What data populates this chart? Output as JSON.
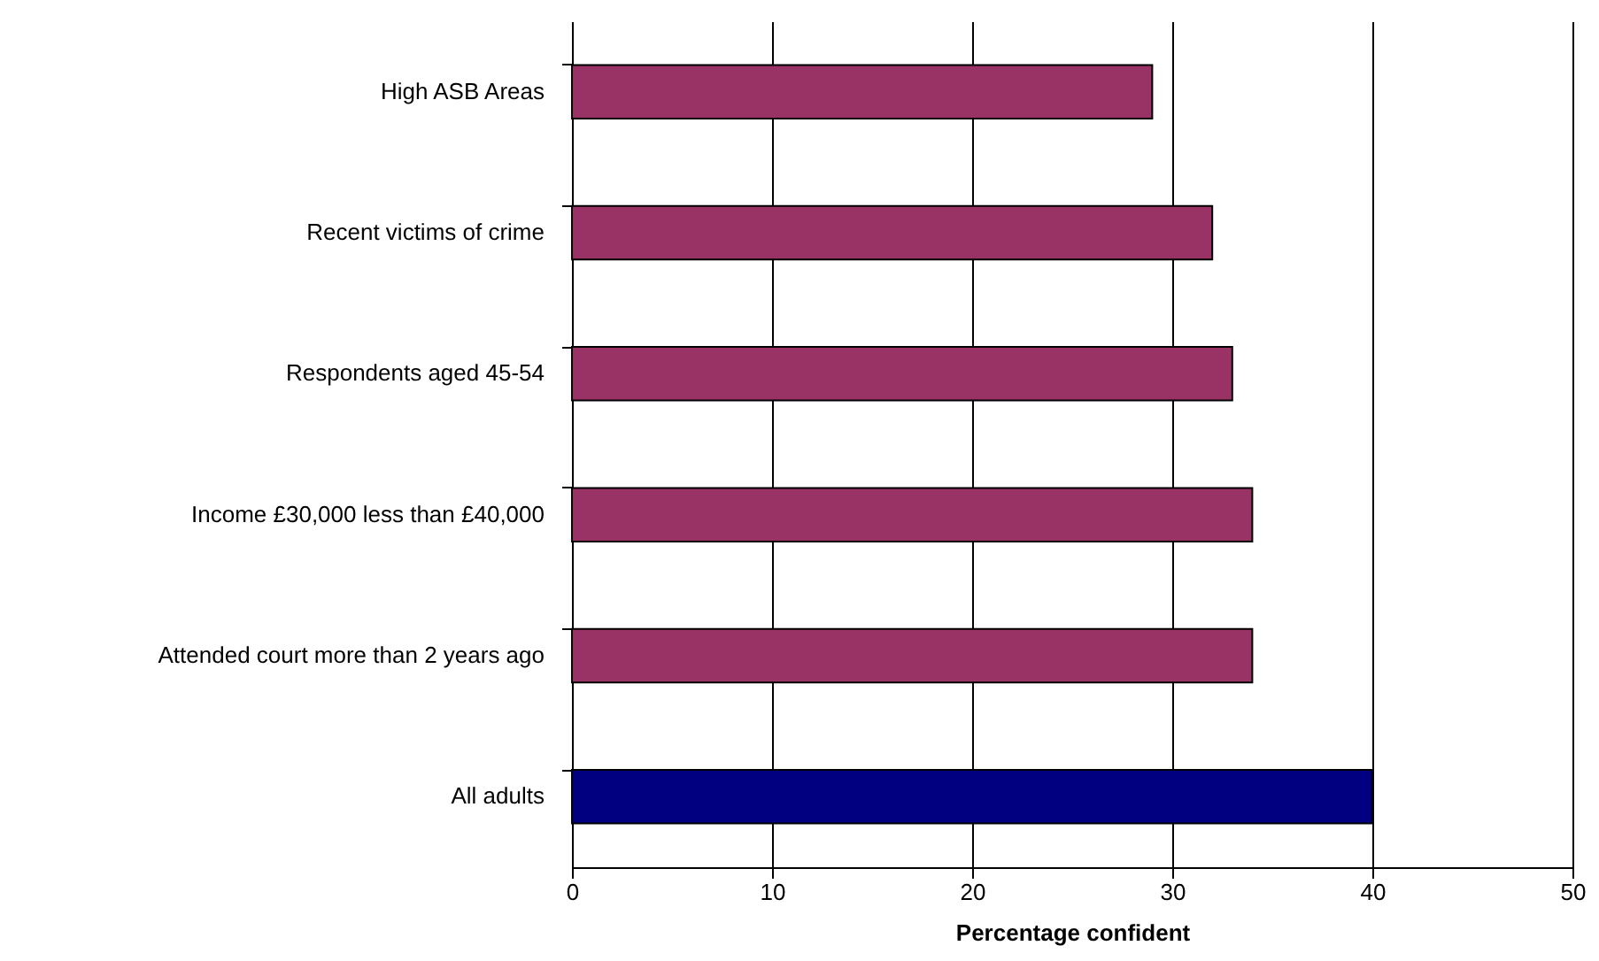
{
  "chart_data": {
    "type": "bar",
    "orientation": "horizontal",
    "xlabel": "Percentage confident",
    "categories": [
      "High ASB Areas",
      "Recent victims of crime",
      "Respondents aged 45-54",
      "Income £30,000 less than £40,000",
      "Attended court more than 2 years ago",
      "All adults"
    ],
    "values": [
      29,
      32,
      33,
      34,
      34,
      40
    ],
    "colors": [
      "#993366",
      "#993366",
      "#993366",
      "#993366",
      "#993366",
      "#000080"
    ],
    "xlim": [
      0,
      50
    ],
    "xticks": [
      0,
      10,
      20,
      30,
      40,
      50
    ],
    "grid": "x"
  }
}
